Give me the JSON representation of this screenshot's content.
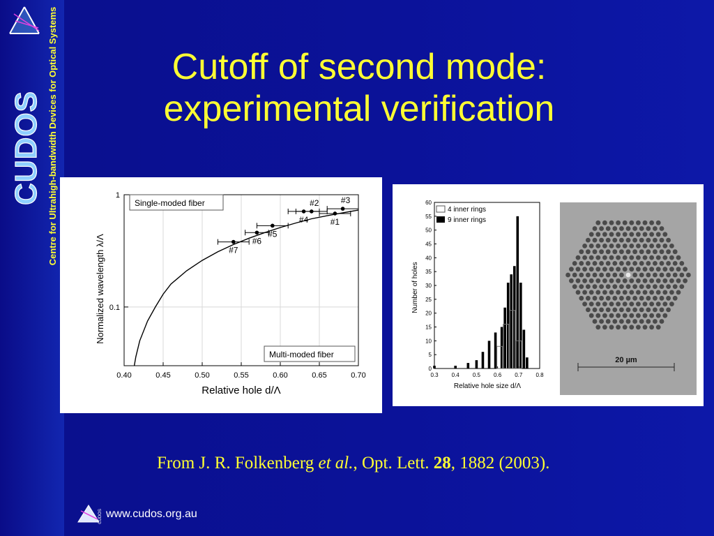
{
  "sidebar": {
    "logo_text": "CUDOS",
    "tagline": "Centre for Ultrahigh-bandwidth Devices for Optical Systems"
  },
  "slide": {
    "title_line1": "Cutoff of second mode:",
    "title_line2": "experimental verification"
  },
  "citation": {
    "prefix": "From J. R. Folkenberg ",
    "etal": "et al.",
    "journal": ", Opt. Lett. ",
    "volume": "28",
    "rest": ", 1882 (2003)."
  },
  "footer": {
    "url": "www.cudos.org.au",
    "logo_label": "CUDOS"
  },
  "colors": {
    "background": "#0b1299",
    "title": "#ffff33",
    "text": "#ffffff"
  },
  "chart_data": [
    {
      "type": "line",
      "xlabel": "Relative hole d/Λ",
      "ylabel": "Normalized wavelength λ/Λ",
      "xlim": [
        0.4,
        0.7
      ],
      "ylim": [
        0.03,
        1
      ],
      "yscale": "log",
      "grid": true,
      "xticks": [
        "0.40",
        "0.45",
        "0.50",
        "0.55",
        "0.60",
        "0.65",
        "0.70"
      ],
      "yticks": [
        "1",
        "0.1"
      ],
      "regions": [
        "Single-moded fiber",
        "Multi-moded fiber"
      ],
      "series": [
        {
          "kind": "curve",
          "x": [
            0.413,
            0.415,
            0.42,
            0.43,
            0.44,
            0.45,
            0.46,
            0.48,
            0.5,
            0.52,
            0.54,
            0.56,
            0.58,
            0.6,
            0.62,
            0.64,
            0.66,
            0.68,
            0.7
          ],
          "y": [
            0.03,
            0.036,
            0.05,
            0.075,
            0.1,
            0.13,
            0.16,
            0.21,
            0.26,
            0.31,
            0.36,
            0.41,
            0.46,
            0.51,
            0.56,
            0.61,
            0.65,
            0.69,
            0.73
          ]
        },
        {
          "kind": "points",
          "labels": [
            "#1",
            "#2",
            "#3",
            "#4",
            "#5",
            "#6",
            "#7"
          ],
          "x": [
            0.67,
            0.64,
            0.68,
            0.63,
            0.59,
            0.57,
            0.54
          ],
          "y": [
            0.68,
            0.71,
            0.75,
            0.71,
            0.53,
            0.46,
            0.38
          ],
          "xerr": [
            0.02,
            0.02,
            0.02,
            0.02,
            0.02,
            0.015,
            0.02
          ]
        }
      ]
    },
    {
      "type": "bar",
      "xlabel": "Relative hole size d/Λ",
      "ylabel": "Number of holes",
      "xlim": [
        0.3,
        0.8
      ],
      "ylim": [
        0,
        60
      ],
      "xticks": [
        "0.3",
        "0.4",
        "0.5",
        "0.6",
        "0.7",
        "0.8"
      ],
      "yticks": [
        "0",
        "5",
        "10",
        "15",
        "20",
        "25",
        "30",
        "35",
        "40",
        "45",
        "50",
        "55",
        "60"
      ],
      "legend": "top-left",
      "series": [
        {
          "name": "4 inner rings",
          "x": [
            0.61,
            0.64,
            0.67,
            0.7
          ],
          "values": [
            8,
            16,
            21,
            10
          ]
        },
        {
          "name": "9 inner rings",
          "x": [
            0.3,
            0.4,
            0.46,
            0.5,
            0.53,
            0.56,
            0.59,
            0.62,
            0.635,
            0.65,
            0.665,
            0.68,
            0.695,
            0.71,
            0.725,
            0.74
          ],
          "values": [
            1,
            1,
            2,
            3,
            6,
            10,
            13,
            15,
            22,
            31,
            34,
            37,
            55,
            31,
            14,
            4
          ]
        }
      ]
    }
  ],
  "micrograph": {
    "scale_label": "20 µm"
  }
}
